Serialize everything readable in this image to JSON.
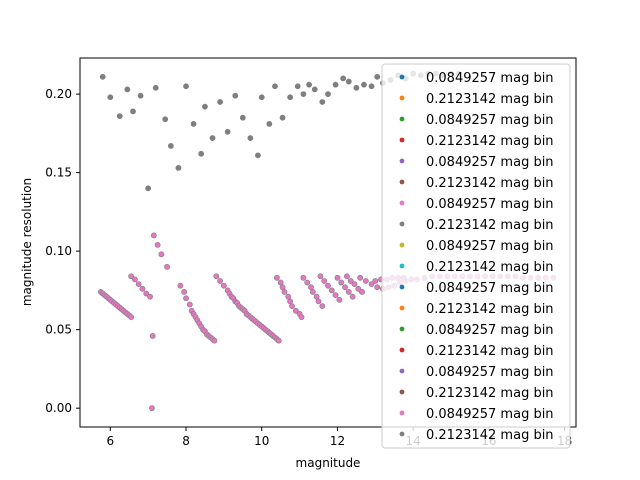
{
  "chart_data": {
    "type": "scatter",
    "xlabel": "magnitude",
    "ylabel": "magnitude resolution",
    "xlim": [
      5.2,
      18.3
    ],
    "ylim": [
      -0.012,
      0.223
    ],
    "x_ticks": [
      6,
      8,
      10,
      12,
      14,
      16,
      18
    ],
    "y_ticks": [
      0.0,
      0.05,
      0.1,
      0.15,
      0.2
    ],
    "x_tick_labels": [
      "6",
      "8",
      "10",
      "12",
      "14",
      "16",
      "18"
    ],
    "y_tick_labels": [
      "0.00",
      "0.05",
      "0.10",
      "0.15",
      "0.20"
    ],
    "legend_position": "right",
    "series": [
      {
        "name": "0.0849257 mag bin",
        "color": "#1f77b4",
        "points": []
      },
      {
        "name": "0.2123142 mag bin",
        "color": "#ff7f0e",
        "points": []
      },
      {
        "name": "0.0849257 mag bin",
        "color": "#2ca02c",
        "points": []
      },
      {
        "name": "0.2123142 mag bin",
        "color": "#d62728",
        "points": []
      },
      {
        "name": "0.0849257 mag bin",
        "color": "#9467bd",
        "points": []
      },
      {
        "name": "0.2123142 mag bin",
        "color": "#8c564b",
        "points": []
      },
      {
        "name": "0.0849257 mag bin",
        "color": "#e377c2",
        "points": [
          [
            5.75,
            0.074
          ],
          [
            5.8,
            0.073
          ],
          [
            5.85,
            0.072
          ],
          [
            5.9,
            0.071
          ],
          [
            5.95,
            0.07
          ],
          [
            6.0,
            0.069
          ],
          [
            6.05,
            0.068
          ],
          [
            6.1,
            0.067
          ],
          [
            6.15,
            0.066
          ],
          [
            6.2,
            0.065
          ],
          [
            6.25,
            0.064
          ],
          [
            6.3,
            0.063
          ],
          [
            6.35,
            0.062
          ],
          [
            6.4,
            0.061
          ],
          [
            6.45,
            0.06
          ],
          [
            6.5,
            0.059
          ],
          [
            6.55,
            0.058
          ],
          [
            6.55,
            0.084
          ],
          [
            6.65,
            0.082
          ],
          [
            6.75,
            0.079
          ],
          [
            6.85,
            0.076
          ],
          [
            6.95,
            0.073
          ],
          [
            7.05,
            0.071
          ],
          [
            7.1,
            0.0
          ],
          [
            7.12,
            0.046
          ],
          [
            7.15,
            0.11
          ],
          [
            7.25,
            0.104
          ],
          [
            7.35,
            0.098
          ],
          [
            7.5,
            0.09
          ],
          [
            7.85,
            0.078
          ],
          [
            7.95,
            0.074
          ],
          [
            8.0,
            0.07
          ],
          [
            8.1,
            0.066
          ],
          [
            8.15,
            0.062
          ],
          [
            8.2,
            0.06
          ],
          [
            8.25,
            0.058
          ],
          [
            8.3,
            0.056
          ],
          [
            8.35,
            0.054
          ],
          [
            8.4,
            0.052
          ],
          [
            8.45,
            0.05
          ],
          [
            8.5,
            0.049
          ],
          [
            8.55,
            0.047
          ],
          [
            8.6,
            0.046
          ],
          [
            8.65,
            0.045
          ],
          [
            8.7,
            0.044
          ],
          [
            8.75,
            0.043
          ],
          [
            8.8,
            0.084
          ],
          [
            8.9,
            0.081
          ],
          [
            9.0,
            0.078
          ],
          [
            9.1,
            0.075
          ],
          [
            9.15,
            0.073
          ],
          [
            9.2,
            0.071
          ],
          [
            9.25,
            0.07
          ],
          [
            9.3,
            0.068
          ],
          [
            9.35,
            0.067
          ],
          [
            9.4,
            0.065
          ],
          [
            9.45,
            0.064
          ],
          [
            9.5,
            0.063
          ],
          [
            9.55,
            0.062
          ],
          [
            9.6,
            0.06
          ],
          [
            9.65,
            0.059
          ],
          [
            9.7,
            0.058
          ],
          [
            9.75,
            0.057
          ],
          [
            9.8,
            0.056
          ],
          [
            9.85,
            0.055
          ],
          [
            9.9,
            0.054
          ],
          [
            9.95,
            0.053
          ],
          [
            10.0,
            0.052
          ],
          [
            10.05,
            0.051
          ],
          [
            10.1,
            0.05
          ],
          [
            10.15,
            0.049
          ],
          [
            10.2,
            0.048
          ],
          [
            10.25,
            0.047
          ],
          [
            10.3,
            0.046
          ],
          [
            10.35,
            0.045
          ],
          [
            10.4,
            0.044
          ],
          [
            10.45,
            0.043
          ],
          [
            10.4,
            0.083
          ],
          [
            10.5,
            0.08
          ],
          [
            10.55,
            0.077
          ],
          [
            10.6,
            0.074
          ],
          [
            10.7,
            0.071
          ],
          [
            10.75,
            0.068
          ],
          [
            10.8,
            0.065
          ],
          [
            10.9,
            0.062
          ],
          [
            11.0,
            0.06
          ],
          [
            11.05,
            0.058
          ],
          [
            11.1,
            0.083
          ],
          [
            11.2,
            0.08
          ],
          [
            11.3,
            0.077
          ],
          [
            11.35,
            0.074
          ],
          [
            11.45,
            0.071
          ],
          [
            11.5,
            0.068
          ],
          [
            11.6,
            0.065
          ],
          [
            11.55,
            0.084
          ],
          [
            11.65,
            0.081
          ],
          [
            11.75,
            0.078
          ],
          [
            11.85,
            0.075
          ],
          [
            11.95,
            0.072
          ],
          [
            12.05,
            0.069
          ],
          [
            12.0,
            0.083
          ],
          [
            12.1,
            0.08
          ],
          [
            12.2,
            0.077
          ],
          [
            12.3,
            0.074
          ],
          [
            12.4,
            0.071
          ],
          [
            12.25,
            0.084
          ],
          [
            12.35,
            0.081
          ],
          [
            12.45,
            0.079
          ],
          [
            12.55,
            0.076
          ],
          [
            12.65,
            0.074
          ],
          [
            12.6,
            0.083
          ],
          [
            12.75,
            0.081
          ],
          [
            12.9,
            0.079
          ],
          [
            13.05,
            0.077
          ],
          [
            13.2,
            0.076
          ],
          [
            13.35,
            0.077
          ],
          [
            13.5,
            0.078
          ],
          [
            13.65,
            0.08
          ],
          [
            13.8,
            0.081
          ],
          [
            13.95,
            0.082
          ],
          [
            14.1,
            0.082
          ],
          [
            14.3,
            0.083
          ],
          [
            14.5,
            0.084
          ],
          [
            14.7,
            0.084
          ],
          [
            14.9,
            0.084
          ],
          [
            15.1,
            0.084
          ],
          [
            15.3,
            0.084
          ],
          [
            15.5,
            0.084
          ],
          [
            15.7,
            0.084
          ],
          [
            15.9,
            0.084
          ],
          [
            16.1,
            0.084
          ],
          [
            16.3,
            0.084
          ],
          [
            16.5,
            0.084
          ],
          [
            16.7,
            0.084
          ],
          [
            16.9,
            0.083
          ],
          [
            17.1,
            0.083
          ],
          [
            17.3,
            0.083
          ],
          [
            17.5,
            0.083
          ],
          [
            17.7,
            0.083
          ],
          [
            13.0,
            0.081
          ],
          [
            13.15,
            0.082
          ],
          [
            13.3,
            0.082
          ],
          [
            13.45,
            0.083
          ],
          [
            13.6,
            0.083
          ],
          [
            13.75,
            0.083
          ]
        ]
      },
      {
        "name": "0.2123142 mag bin",
        "color": "#7f7f7f",
        "points": [
          [
            5.8,
            0.211
          ],
          [
            6.0,
            0.198
          ],
          [
            6.25,
            0.186
          ],
          [
            6.45,
            0.203
          ],
          [
            6.6,
            0.189
          ],
          [
            6.8,
            0.199
          ],
          [
            7.0,
            0.14
          ],
          [
            7.2,
            0.204
          ],
          [
            7.45,
            0.184
          ],
          [
            7.6,
            0.167
          ],
          [
            7.8,
            0.153
          ],
          [
            8.0,
            0.205
          ],
          [
            8.2,
            0.181
          ],
          [
            8.4,
            0.162
          ],
          [
            8.5,
            0.192
          ],
          [
            8.7,
            0.172
          ],
          [
            8.9,
            0.195
          ],
          [
            9.1,
            0.176
          ],
          [
            9.3,
            0.199
          ],
          [
            9.5,
            0.185
          ],
          [
            9.7,
            0.172
          ],
          [
            9.9,
            0.161
          ],
          [
            10.0,
            0.198
          ],
          [
            10.2,
            0.181
          ],
          [
            10.35,
            0.205
          ],
          [
            10.55,
            0.185
          ],
          [
            10.75,
            0.198
          ],
          [
            10.95,
            0.205
          ],
          [
            11.1,
            0.2
          ],
          [
            11.25,
            0.206
          ],
          [
            11.4,
            0.203
          ],
          [
            11.6,
            0.195
          ],
          [
            11.75,
            0.2
          ],
          [
            11.95,
            0.206
          ],
          [
            12.15,
            0.21
          ],
          [
            12.3,
            0.208
          ],
          [
            12.5,
            0.204
          ],
          [
            12.7,
            0.206
          ],
          [
            12.9,
            0.205
          ],
          [
            13.05,
            0.211
          ],
          [
            13.2,
            0.207
          ],
          [
            13.4,
            0.209
          ],
          [
            13.6,
            0.212
          ],
          [
            13.8,
            0.21
          ],
          [
            14.0,
            0.213
          ],
          [
            14.2,
            0.212
          ],
          [
            14.4,
            0.213
          ],
          [
            14.6,
            0.213
          ],
          [
            14.8,
            0.212
          ],
          [
            15.0,
            0.213
          ],
          [
            15.2,
            0.213
          ]
        ]
      },
      {
        "name": "0.0849257 mag bin",
        "color": "#bcbd22",
        "points": []
      },
      {
        "name": "0.2123142 mag bin",
        "color": "#17becf",
        "points": []
      },
      {
        "name": "0.0849257 mag bin",
        "color": "#1f77b4",
        "points": []
      },
      {
        "name": "0.2123142 mag bin",
        "color": "#ff7f0e",
        "points": []
      },
      {
        "name": "0.0849257 mag bin",
        "color": "#2ca02c",
        "points": []
      },
      {
        "name": "0.2123142 mag bin",
        "color": "#d62728",
        "points": []
      },
      {
        "name": "0.0849257 mag bin",
        "color": "#9467bd",
        "points": []
      },
      {
        "name": "0.2123142 mag bin",
        "color": "#8c564b",
        "points": []
      },
      {
        "name": "0.0849257 mag bin",
        "color": "#e377c2",
        "points": []
      },
      {
        "name": "0.2123142 mag bin",
        "color": "#7f7f7f",
        "points": []
      }
    ]
  }
}
